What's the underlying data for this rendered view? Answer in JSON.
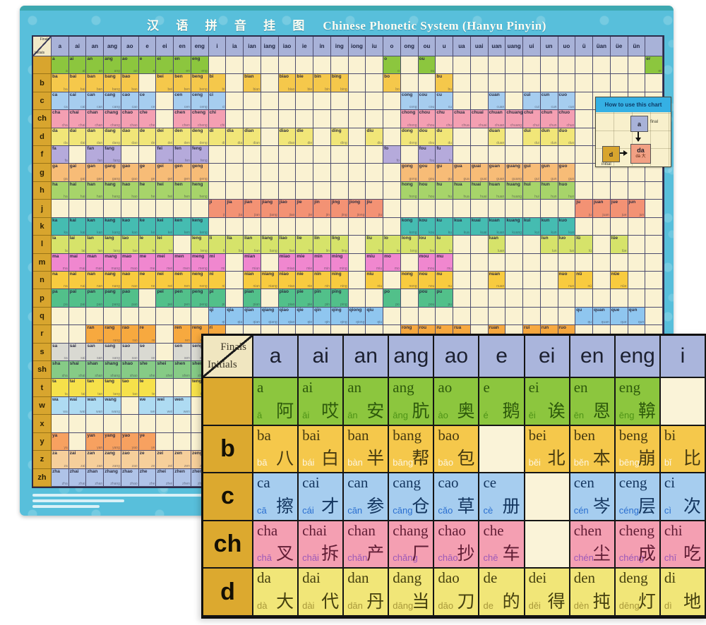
{
  "poster": {
    "title_zh": "汉 语 拼 音 挂 图",
    "title_en": "Chinese Phonetic System (Hanyu Pinyin)",
    "corner": {
      "top": "Finals",
      "bottom": "Initials"
    },
    "paper_color": "#faf2d2",
    "header_color": "#a8b2d8",
    "initial_col_color": "#d8a52e",
    "border_color": "#58bfdb",
    "finals": [
      "a",
      "ai",
      "an",
      "ang",
      "ao",
      "e",
      "ei",
      "en",
      "eng",
      "i",
      "ia",
      "ian",
      "iang",
      "iao",
      "ie",
      "in",
      "ing",
      "iong",
      "iu",
      "o",
      "ong",
      "ou",
      "u",
      "ua",
      "uai",
      "uan",
      "uang",
      "ui",
      "un",
      "uo",
      "ü",
      "üan",
      "üe",
      "ün",
      ""
    ],
    "rows": [
      {
        "initial": "",
        "color": "#8cc63e",
        "fills": "11111111100000000001010000000000001"
      },
      {
        "initial": "b",
        "color": "#f5c84b",
        "fills": "11111011110101111001001000000000000"
      },
      {
        "initial": "c",
        "color": "#a6cdef",
        "fills": "11111101110000000000111001011100000"
      },
      {
        "initial": "ch",
        "color": "#f49fb2",
        "fills": "11111101110000000000111111111100000"
      },
      {
        "initial": "d",
        "color": "#f1e678",
        "fills": "11111111111101101010111001011100000"
      },
      {
        "initial": "f",
        "color": "#b5aadb",
        "fills": "10110011100000000001011000000000000"
      },
      {
        "initial": "g",
        "color": "#f7bc77",
        "fills": "11111111100000000000111111111100000"
      },
      {
        "initial": "h",
        "color": "#a7d46a",
        "fills": "11111111100000000000111111111100000"
      },
      {
        "initial": "j",
        "color": "#f39274",
        "fills": "00000000011111111110000000000011110"
      },
      {
        "initial": "k",
        "color": "#45bcb1",
        "fills": "11111111100000000000111111111100000"
      },
      {
        "initial": "l",
        "color": "#d6e36a",
        "fills": "11111110111111111011111001001110100"
      },
      {
        "initial": "m",
        "color": "#f087cf",
        "fills": "11111111110101111011011000000000000"
      },
      {
        "initial": "n",
        "color": "#f8cb3f",
        "fills": "11111111110111111010111001000110100"
      },
      {
        "initial": "p",
        "color": "#52c08a",
        "fills": "11111011110101111001011000000000000"
      },
      {
        "initial": "q",
        "color": "#8fc6ef",
        "fills": "00000000011111111110000000000011110"
      },
      {
        "initial": "r",
        "color": "#f7a93f",
        "fills": "00111101110000000000111101011100000"
      },
      {
        "initial": "s",
        "color": "#d9d9d2",
        "fills": "11111101110000000000111001011100000"
      },
      {
        "initial": "sh",
        "color": "#86cb86",
        "fills": "11111111110000000000011111111100000"
      },
      {
        "initial": "t",
        "color": "#f6e14a",
        "fills": "11111100110101101000111001011100000"
      },
      {
        "initial": "w",
        "color": "#aedbf2",
        "fills": "11110111000000000001001000000000000"
      },
      {
        "initial": "x",
        "color": "#f5edb5",
        "fills": "00000000011111111110000000000011110"
      },
      {
        "initial": "y",
        "color": "#f7a160",
        "fills": "10111100010000011001110000000011110"
      },
      {
        "initial": "z",
        "color": "#f6cf9b",
        "fills": "11111111110000000000111001011100000"
      },
      {
        "initial": "zh",
        "color": "#afc3e8",
        "fills": "11111111110000000000111111111100000"
      }
    ]
  },
  "legend": {
    "title": "How to use this chart",
    "final_cell": "a",
    "final_label": "final",
    "initial_cell": "d",
    "initial_label": "initial",
    "result": "da",
    "result_sub": "dà 大"
  },
  "inset": {
    "corner": {
      "top": "Finals",
      "bottom": "Initials"
    },
    "finals": [
      "a",
      "ai",
      "an",
      "ang",
      "ao",
      "e",
      "ei",
      "en",
      "eng",
      "i"
    ],
    "rows": [
      {
        "initial": "",
        "color": "#8cc63e",
        "syl_color": "#2e5a0c",
        "py_color": "#4e9317",
        "cells": [
          {
            "s": "a",
            "p": "ā",
            "c": "阿"
          },
          {
            "s": "ai",
            "p": "āi",
            "c": "哎"
          },
          {
            "s": "an",
            "p": "ān",
            "c": "安"
          },
          {
            "s": "ang",
            "p": "āng",
            "c": "肮"
          },
          {
            "s": "ao",
            "p": "ào",
            "c": "奥"
          },
          {
            "s": "e",
            "p": "é",
            "c": "鹅"
          },
          {
            "s": "ei",
            "p": "ēi",
            "c": "诶"
          },
          {
            "s": "en",
            "p": "ēn",
            "c": "恩"
          },
          {
            "s": "eng",
            "p": "ēng",
            "c": "鞥"
          },
          null
        ]
      },
      {
        "initial": "b",
        "color": "#f5c84b",
        "syl_color": "#463a10",
        "py_color": "#fdf6e0",
        "cells": [
          {
            "s": "ba",
            "p": "bā",
            "c": "八"
          },
          {
            "s": "bai",
            "p": "bái",
            "c": "白"
          },
          {
            "s": "ban",
            "p": "bàn",
            "c": "半"
          },
          {
            "s": "bang",
            "p": "bāng",
            "c": "帮"
          },
          {
            "s": "bao",
            "p": "bāo",
            "c": "包"
          },
          null,
          {
            "s": "bei",
            "p": "běi",
            "c": "北"
          },
          {
            "s": "ben",
            "p": "běn",
            "c": "本"
          },
          {
            "s": "beng",
            "p": "bēng",
            "c": "崩"
          },
          {
            "s": "bi",
            "p": "bǐ",
            "c": "比"
          }
        ]
      },
      {
        "initial": "c",
        "color": "#a6cdef",
        "syl_color": "#14365f",
        "py_color": "#2a6fd0",
        "cells": [
          {
            "s": "ca",
            "p": "cā",
            "c": "擦"
          },
          {
            "s": "cai",
            "p": "cái",
            "c": "才"
          },
          {
            "s": "can",
            "p": "cān",
            "c": "参"
          },
          {
            "s": "cang",
            "p": "cāng",
            "c": "仓"
          },
          {
            "s": "cao",
            "p": "cǎo",
            "c": "草"
          },
          {
            "s": "ce",
            "p": "cè",
            "c": "册"
          },
          null,
          {
            "s": "cen",
            "p": "cén",
            "c": "岑"
          },
          {
            "s": "ceng",
            "p": "céng",
            "c": "层"
          },
          {
            "s": "ci",
            "p": "cì",
            "c": "次"
          }
        ]
      },
      {
        "initial": "ch",
        "color": "#f49fb2",
        "syl_color": "#611d35",
        "py_color": "#9c59b8",
        "cells": [
          {
            "s": "cha",
            "p": "chā",
            "c": "叉"
          },
          {
            "s": "chai",
            "p": "chāi",
            "c": "拆"
          },
          {
            "s": "chan",
            "p": "chǎn",
            "c": "产"
          },
          {
            "s": "chang",
            "p": "chǎng",
            "c": "厂"
          },
          {
            "s": "chao",
            "p": "chāo",
            "c": "抄"
          },
          {
            "s": "che",
            "p": "chē",
            "c": "车"
          },
          null,
          {
            "s": "chen",
            "p": "chén",
            "c": "尘"
          },
          {
            "s": "cheng",
            "p": "chéng",
            "c": "成"
          },
          {
            "s": "chi",
            "p": "chī",
            "c": "吃"
          }
        ]
      },
      {
        "initial": "d",
        "color": "#f1e678",
        "syl_color": "#45400e",
        "py_color": "#a8983a",
        "cells": [
          {
            "s": "da",
            "p": "dà",
            "c": "大"
          },
          {
            "s": "dai",
            "p": "dài",
            "c": "代"
          },
          {
            "s": "dan",
            "p": "dān",
            "c": "丹"
          },
          {
            "s": "dang",
            "p": "dāng",
            "c": "当"
          },
          {
            "s": "dao",
            "p": "dāo",
            "c": "刀"
          },
          {
            "s": "de",
            "p": "de",
            "c": "的"
          },
          {
            "s": "dei",
            "p": "děi",
            "c": "得"
          },
          {
            "s": "den",
            "p": "dèn",
            "c": "扽"
          },
          {
            "s": "deng",
            "p": "dēng",
            "c": "灯"
          },
          {
            "s": "di",
            "p": "dì",
            "c": "地"
          }
        ]
      }
    ]
  }
}
